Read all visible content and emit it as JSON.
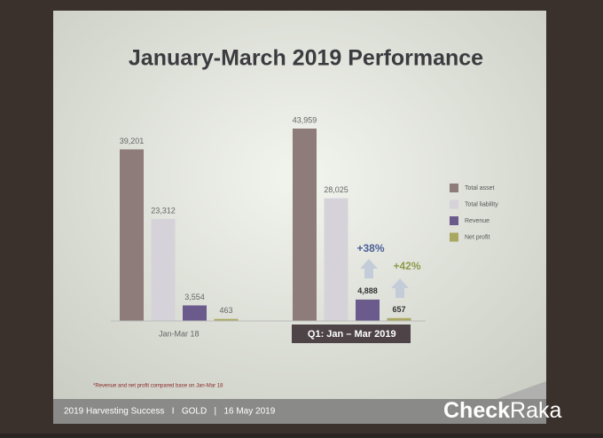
{
  "chart_data": {
    "type": "bar",
    "title": "January-March 2019 Performance",
    "categories": [
      "Jan-Mar 18",
      "Q1: Jan – Mar 2019"
    ],
    "series": [
      {
        "name": "Total asset",
        "color": "#8e7c7a",
        "values": [
          39201,
          43959
        ],
        "value_labels": [
          "39,201",
          "43,959"
        ]
      },
      {
        "name": "Total liability",
        "color": "#d6d2da",
        "values": [
          23312,
          28025
        ],
        "value_labels": [
          "23,312",
          "28,025"
        ]
      },
      {
        "name": "Revenue",
        "color": "#6b5a8c",
        "values": [
          3554,
          4888
        ],
        "value_labels": [
          "3,554",
          "4,888"
        ]
      },
      {
        "name": "Net profit",
        "color": "#a9a862",
        "values": [
          463,
          657
        ],
        "value_labels": [
          "463",
          "657"
        ]
      }
    ],
    "annotations": [
      "+38%",
      "+42%"
    ],
    "footnote": "*Revenue and net profit compared base on Jan-Mar 18"
  },
  "footer": "2019 Harvesting Success   I   GOLD   |   16 May 2019",
  "watermark": [
    "Check",
    "Raka"
  ]
}
